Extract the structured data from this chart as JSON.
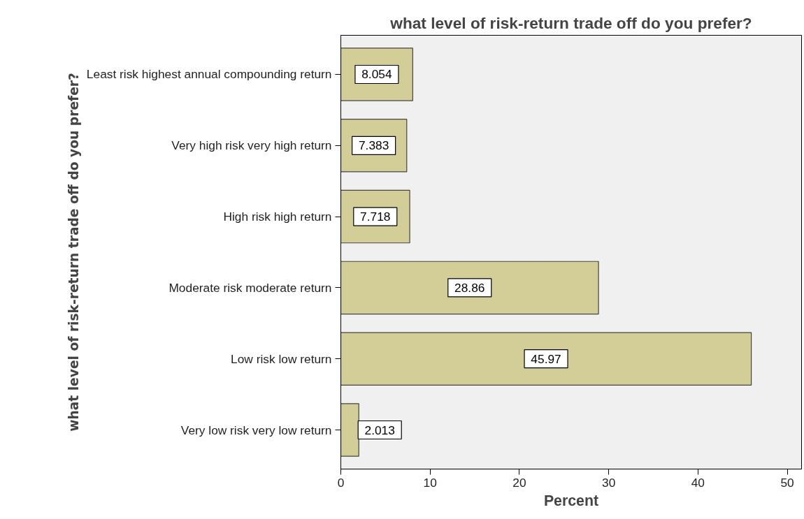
{
  "chart_data": {
    "type": "bar",
    "orientation": "horizontal",
    "title": "what level of risk-return trade off do you prefer?",
    "xlabel": "Percent",
    "ylabel": "what level of risk-return trade off do you prefer?",
    "categories": [
      "Least risk highest annual compounding return",
      "Very high risk very high return",
      "High risk high return",
      "Moderate risk moderate return",
      "Low risk low return",
      "Very low risk very low return"
    ],
    "values": [
      8.054,
      7.383,
      7.718,
      28.86,
      45.97,
      2.013
    ],
    "color": "#d3ce98",
    "xlim": [
      0,
      51.6
    ],
    "xticks": [
      0,
      10,
      20,
      30,
      40,
      50
    ],
    "data_labels": true,
    "grid": false
  }
}
